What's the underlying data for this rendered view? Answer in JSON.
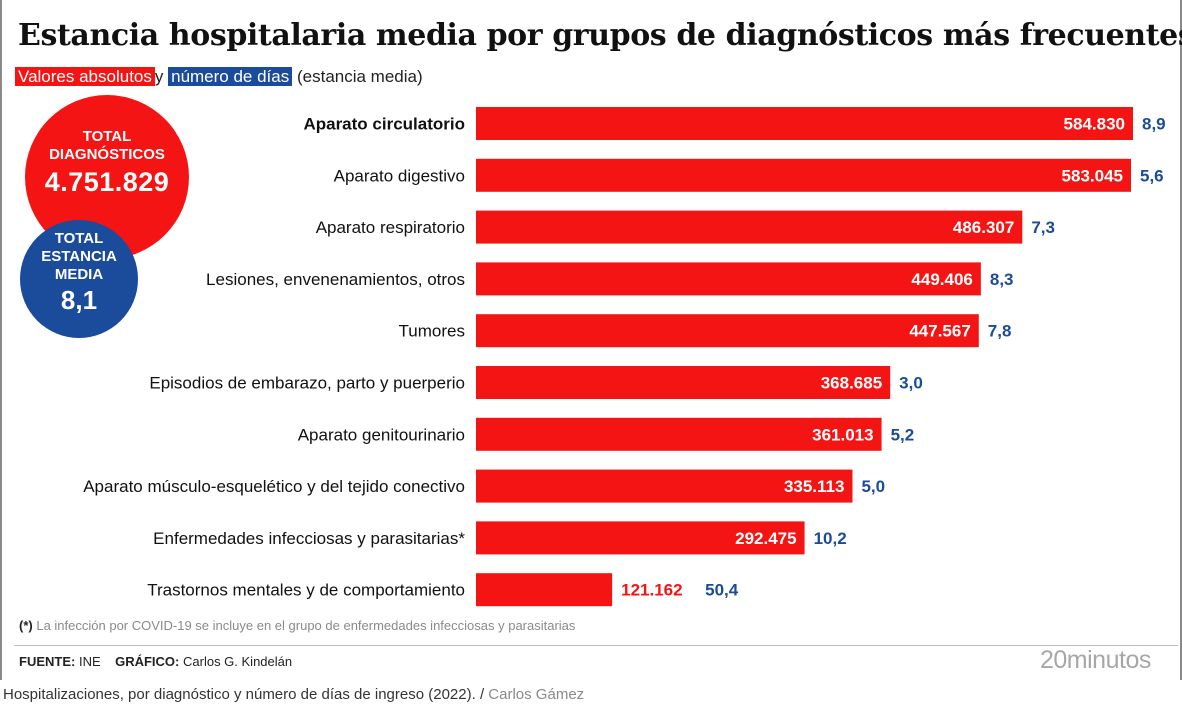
{
  "title": "Estancia hospitalaria media por grupos de diagnósticos más frecuentes",
  "subtitle": {
    "red_label": "Valores absolutos",
    "connector": "y",
    "blue_label": "número de días",
    "suffix": "(estancia media)"
  },
  "totals": {
    "diagnostics_label_1": "TOTAL",
    "diagnostics_label_2": "DIAGNÓSTICOS",
    "diagnostics_value": "4.751.829",
    "stay_label_1": "TOTAL",
    "stay_label_2": "ESTANCIA",
    "stay_label_3": "MEDIA",
    "stay_value": "8,1"
  },
  "colors": {
    "red": "#f41414",
    "blue": "#1b4b9b"
  },
  "chart_data": {
    "type": "bar",
    "orientation": "horizontal",
    "categories": [
      "Aparato circulatorio",
      "Aparato digestivo",
      "Aparato respiratorio",
      "Lesiones, envenenamientos, otros",
      "Tumores",
      "Episodios de embarazo, parto y puerperio",
      "Aparato genitourinario",
      "Aparato músculo-esquelético y del tejido conectivo",
      "Enfermedades infecciosas y parasitarias*",
      "Trastornos mentales y de comportamiento"
    ],
    "values": [
      584830,
      583045,
      486307,
      449406,
      447567,
      368685,
      361013,
      335113,
      292475,
      121162
    ],
    "value_labels": [
      "584.830",
      "583.045",
      "486.307",
      "449.406",
      "447.567",
      "368.685",
      "361.013",
      "335.113",
      "292.475",
      "121.162"
    ],
    "avg_stay_days": [
      8.9,
      5.6,
      7.3,
      8.3,
      7.8,
      3.0,
      5.2,
      5.0,
      10.2,
      50.4
    ],
    "avg_stay_labels": [
      "8,9",
      "5,6",
      "7,3",
      "8,3",
      "7,8",
      "3,0",
      "5,2",
      "5,0",
      "10,2",
      "50,4"
    ],
    "bold_categories": [
      0
    ]
  },
  "footnote": {
    "marker": "(*)",
    "text": "La infección por COVID-19 se incluye en el grupo de enfermedades infecciosas y parasitarias"
  },
  "source": {
    "fuente_label": "FUENTE:",
    "fuente_value": "INE",
    "grafico_label": "GRÁFICO:",
    "grafico_value": "Carlos G. Kindelán"
  },
  "brand": "20minutos",
  "caption": {
    "text": "Hospitalizaciones, por diagnóstico y número de días de ingreso (2022).",
    "separator": "/",
    "credit": "Carlos Gámez"
  }
}
